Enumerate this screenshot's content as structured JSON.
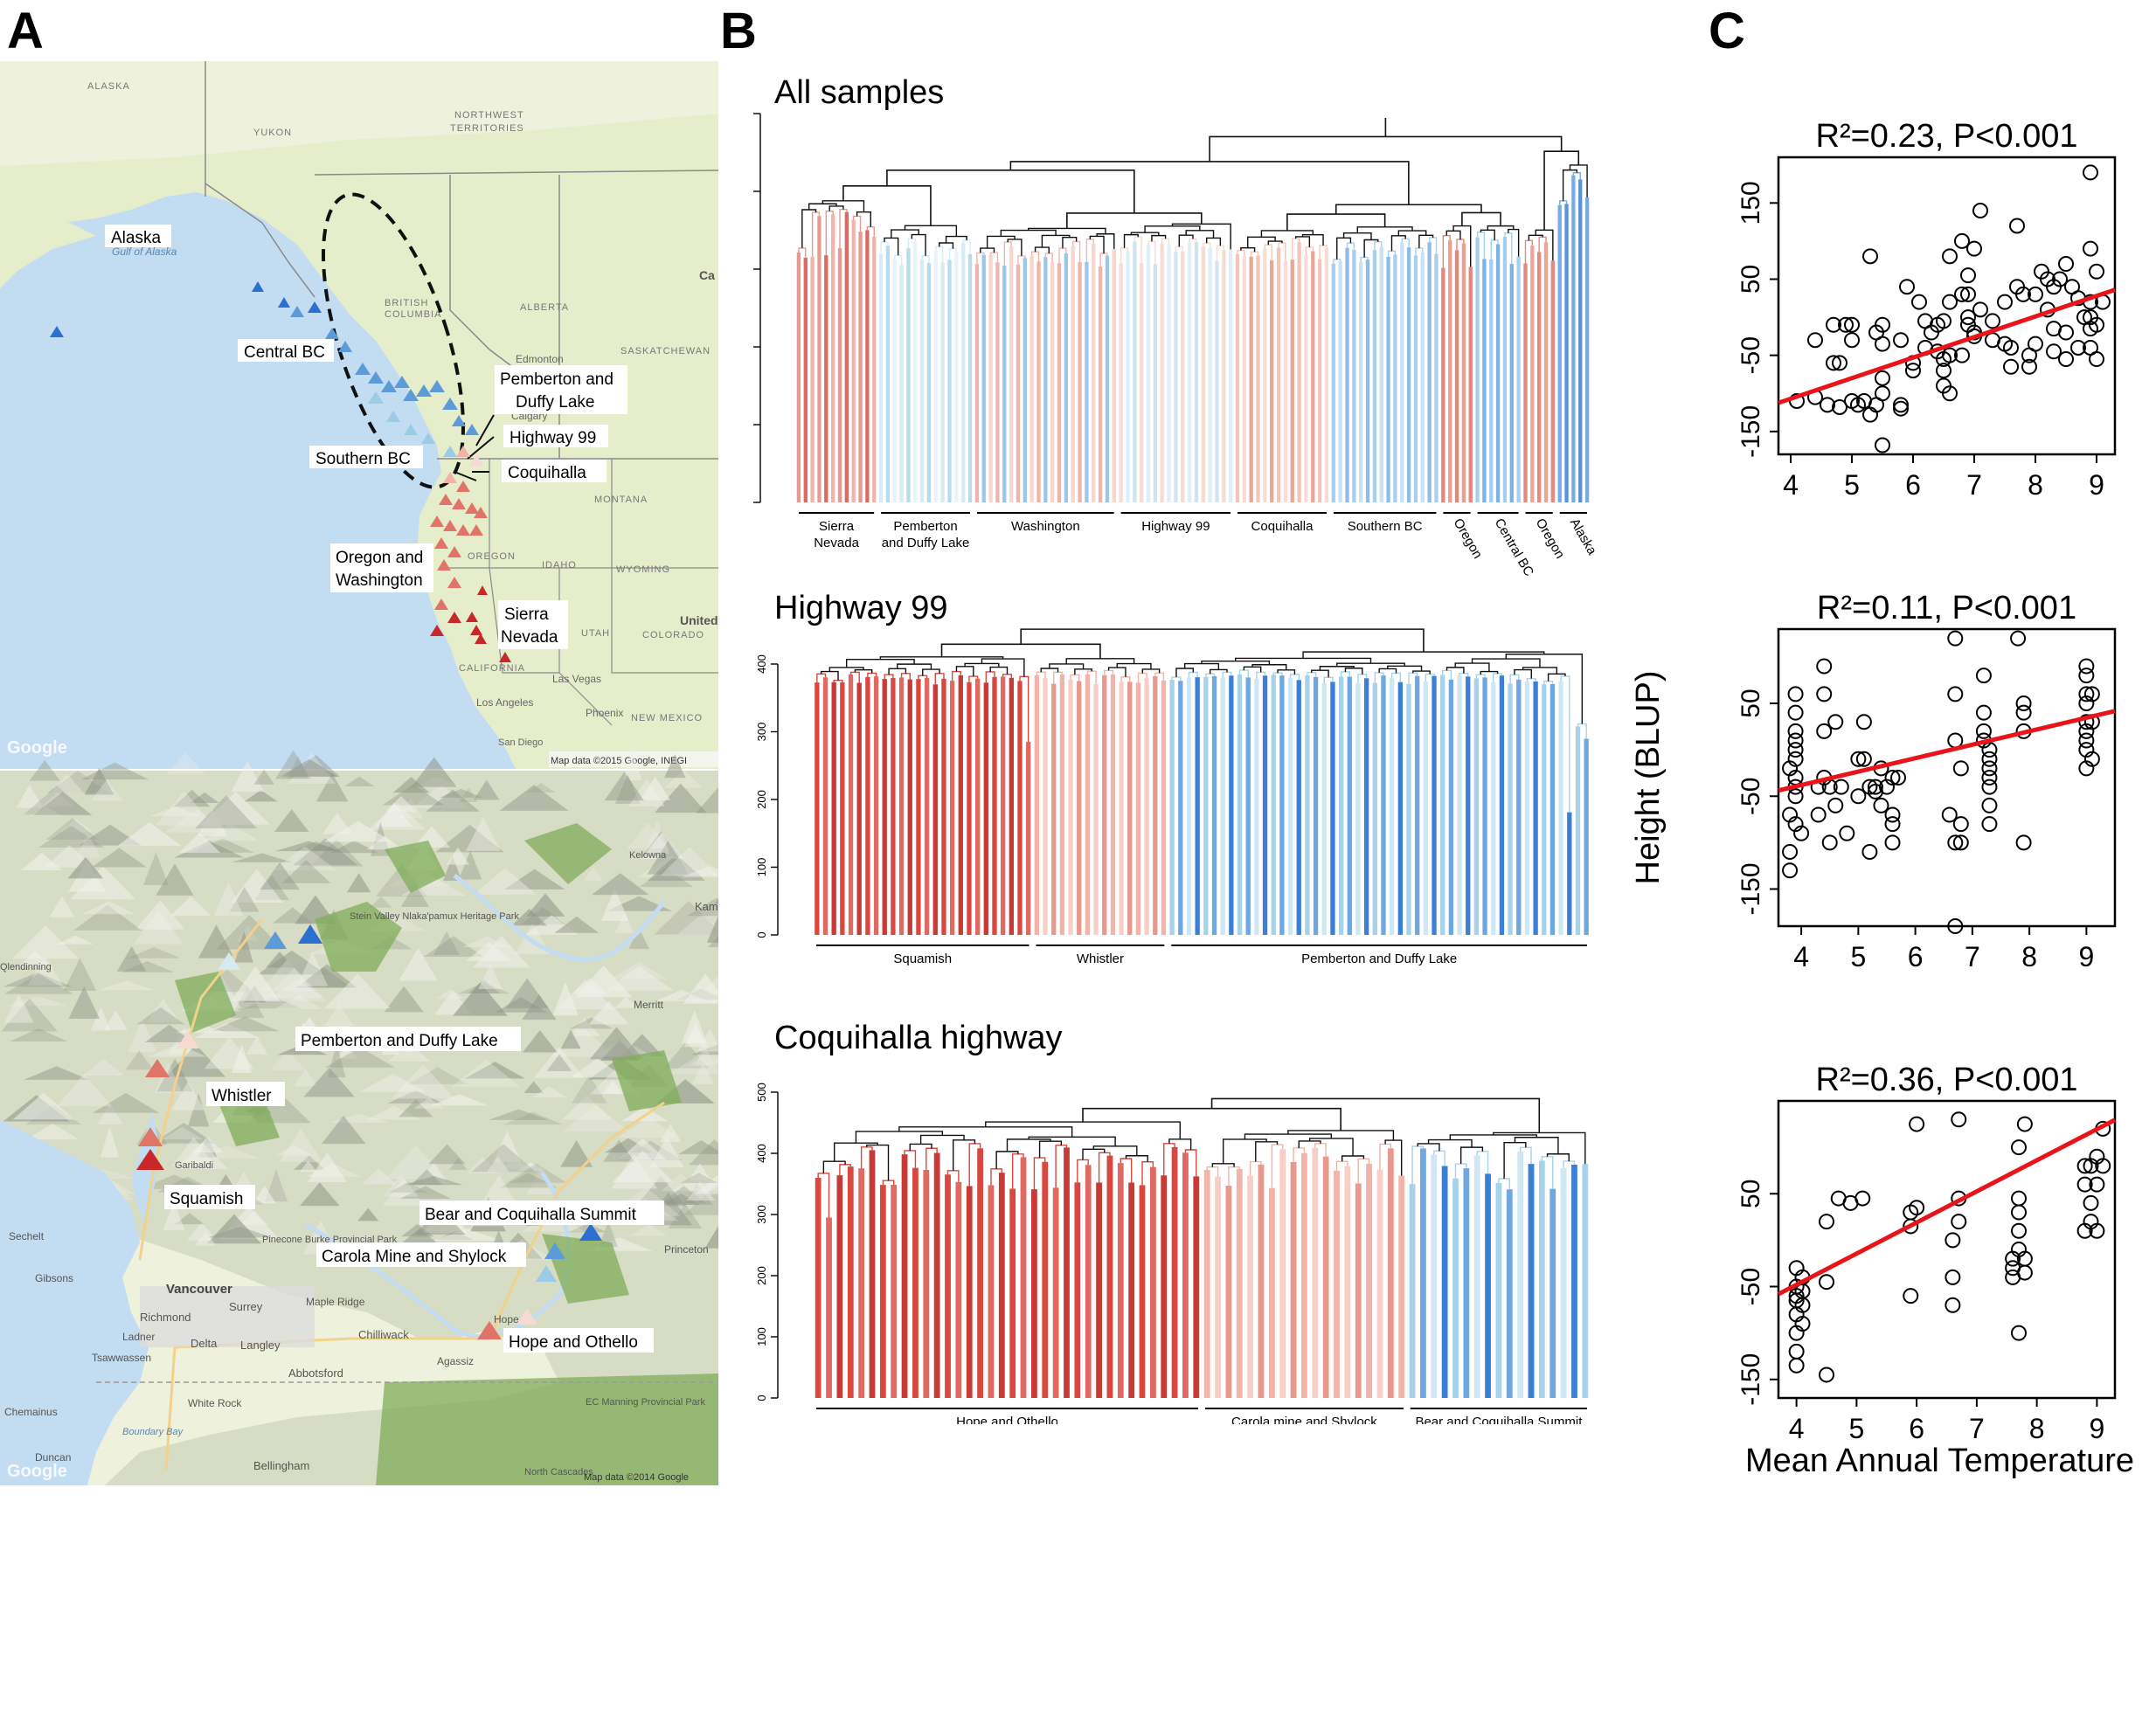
{
  "panels": {
    "a": "A",
    "b": "B",
    "c": "C"
  },
  "colors": {
    "ocean": "#c2dcf2",
    "land": "#e6edcb",
    "land_north": "#eef1dc",
    "terrain": "#d7dcc4",
    "terrain_dark": "#8f9587",
    "forest": "#7fae5a",
    "border": "#8a8a8a",
    "red_dark": "#c8282a",
    "red": "#e07468",
    "red_light": "#f2b2a6",
    "pale": "#f6d9d2",
    "ice": "#d6eaf2",
    "blue_light": "#9ccbe6",
    "blue": "#5d9bd8",
    "blue_dark": "#2b6fd0",
    "fit_line": "#e8141a"
  },
  "map_top": {
    "places": [
      "ALASKA",
      "YUKON",
      "NORTHWEST",
      "TERRITORIES",
      "BRITISH",
      "COLUMBIA",
      "ALBERTA",
      "SASKATCHEWAN",
      "Edmonton",
      "Calgary",
      "MONTANA",
      "IDAHO",
      "WYOMING",
      "OREGON",
      "UTAH",
      "COLORADO",
      "CALIFORNIA",
      "NEW MEXICO",
      "Las Vegas",
      "Los Angeles",
      "Phoenix",
      "San Diego",
      "United",
      "Gulf of Alaska",
      "Ca"
    ],
    "region_labels": [
      "Alaska",
      "Central BC",
      "Pemberton and",
      "Duffy Lake",
      "Highway 99",
      "Southern BC",
      "Coquihalla",
      "Oregon and",
      "Washington",
      "Sierra",
      "Nevada"
    ],
    "google": "Google",
    "credit": "Map data ©2015 Google, INEGI"
  },
  "map_bottom": {
    "site_labels": [
      "Pemberton and Duffy Lake",
      "Whistler",
      "Squamish",
      "Bear and Coquihalla Summit",
      "Carola Mine and Shylock",
      "Hope and Othello"
    ],
    "places": [
      "Vancouver",
      "Richmond",
      "Surrey",
      "Delta",
      "Langley",
      "Abbotsford",
      "Chilliwack",
      "Maple Ridge",
      "White Rock",
      "Bellingham",
      "Gibsons",
      "Sechelt",
      "Tsawwassen",
      "Ladner",
      "Merritt",
      "Princeton",
      "Hope",
      "Agassiz",
      "Duncan",
      "Chemainus",
      "Boundary Bay",
      "Garibaldi",
      "Stein Valley Nlaka'pamux Heritage Park",
      "Pinecone Burke Provincial Park",
      "EC Manning Provincial Park",
      "North Cascades",
      "Kam",
      "Qlendinning",
      "Kelowna"
    ],
    "google": "Google",
    "credit": "Map data ©2014 Google"
  },
  "dendrograms": [
    {
      "title": "All samples",
      "groups": [
        {
          "label": "Sierra Nevada",
          "lines": [
            "Sierra",
            "Nevada"
          ],
          "n": 12
        },
        {
          "label": "Pemberton and Duffy Lake",
          "lines": [
            "Pemberton",
            "and Duffy Lake"
          ],
          "n": 14
        },
        {
          "label": "Washington",
          "lines": [
            "Washington"
          ],
          "n": 21
        },
        {
          "label": "Highway 99",
          "lines": [
            "Highway 99"
          ],
          "n": 17
        },
        {
          "label": "Coquihalla",
          "lines": [
            "Coquihalla"
          ],
          "n": 14
        },
        {
          "label": "Southern BC",
          "lines": [
            "Southern BC"
          ],
          "n": 16
        },
        {
          "label": "Oregon",
          "lines": [
            "Oregon"
          ],
          "n": 5,
          "rotated": true
        },
        {
          "label": "Central BC",
          "lines": [
            "Central BC"
          ],
          "n": 7,
          "rotated": true
        },
        {
          "label": "Oregon",
          "lines": [
            "Oregon"
          ],
          "n": 5,
          "rotated": true
        },
        {
          "label": "Alaska",
          "lines": [
            "Alaska"
          ],
          "n": 5,
          "rotated": true
        }
      ]
    },
    {
      "title": "Highway 99",
      "ylim": [
        0,
        400
      ],
      "yticks": [
        0,
        100,
        200,
        300,
        400
      ],
      "groups": [
        {
          "label": "Squamish",
          "n": 26
        },
        {
          "label": "Whistler",
          "n": 16
        },
        {
          "label": "Pemberton and Duffy Lake",
          "n": 50
        }
      ]
    },
    {
      "title": "Coquihalla highway",
      "ylim": [
        0,
        500
      ],
      "yticks": [
        0,
        100,
        200,
        300,
        400,
        500
      ],
      "groups": [
        {
          "label": "Hope and Othello",
          "n": 36
        },
        {
          "label": "Carola mine and Shylock",
          "n": 19
        },
        {
          "label": "Bear and Coquihalla Summit",
          "n": 17
        }
      ]
    }
  ],
  "chart_data": [
    {
      "type": "scatter",
      "title": "R²=0.23, P<0.001",
      "xlim": [
        3.8,
        9.3
      ],
      "ylim": [
        -180,
        210
      ],
      "xticks": [
        4,
        5,
        6,
        7,
        8,
        9
      ],
      "yticks": [
        -150,
        -50,
        50,
        150
      ],
      "fit": {
        "intercept": -215,
        "slope": 27
      },
      "points": [
        [
          4.1,
          -110
        ],
        [
          4.4,
          -30
        ],
        [
          4.4,
          -105
        ],
        [
          4.6,
          -115
        ],
        [
          4.7,
          -60
        ],
        [
          4.7,
          -10
        ],
        [
          4.8,
          -118
        ],
        [
          4.8,
          -60
        ],
        [
          4.9,
          -10
        ],
        [
          5.0,
          -110
        ],
        [
          5.0,
          -30
        ],
        [
          5.0,
          -10
        ],
        [
          5.1,
          -115
        ],
        [
          5.2,
          -110
        ],
        [
          5.3,
          80
        ],
        [
          5.3,
          -128
        ],
        [
          5.4,
          -20
        ],
        [
          5.4,
          -115
        ],
        [
          5.5,
          -10
        ],
        [
          5.5,
          -80
        ],
        [
          5.5,
          -100
        ],
        [
          5.5,
          -35
        ],
        [
          5.5,
          -168
        ],
        [
          5.8,
          -120
        ],
        [
          5.8,
          -30
        ],
        [
          5.8,
          -115
        ],
        [
          5.9,
          40
        ],
        [
          6.0,
          -60
        ],
        [
          6.0,
          -70
        ],
        [
          6.1,
          20
        ],
        [
          6.2,
          -5
        ],
        [
          6.2,
          -40
        ],
        [
          6.3,
          -20
        ],
        [
          6.4,
          -10
        ],
        [
          6.4,
          -45
        ],
        [
          6.5,
          -5
        ],
        [
          6.5,
          -55
        ],
        [
          6.5,
          -70
        ],
        [
          6.5,
          -90
        ],
        [
          6.6,
          80
        ],
        [
          6.6,
          -50
        ],
        [
          6.6,
          -100
        ],
        [
          6.6,
          20
        ],
        [
          6.8,
          -50
        ],
        [
          6.8,
          100
        ],
        [
          6.8,
          30
        ],
        [
          6.9,
          0
        ],
        [
          6.9,
          -10
        ],
        [
          6.9,
          30
        ],
        [
          6.9,
          55
        ],
        [
          7.0,
          -20
        ],
        [
          7.0,
          90
        ],
        [
          7.0,
          -25
        ],
        [
          7.1,
          140
        ],
        [
          7.1,
          10
        ],
        [
          7.3,
          -30
        ],
        [
          7.3,
          -5
        ],
        [
          7.5,
          20
        ],
        [
          7.5,
          -35
        ],
        [
          7.6,
          -65
        ],
        [
          7.6,
          -40
        ],
        [
          7.7,
          40
        ],
        [
          7.7,
          120
        ],
        [
          7.8,
          30
        ],
        [
          7.9,
          -50
        ],
        [
          7.9,
          -65
        ],
        [
          8.0,
          -35
        ],
        [
          8.0,
          30
        ],
        [
          8.1,
          60
        ],
        [
          8.2,
          50
        ],
        [
          8.2,
          10
        ],
        [
          8.3,
          40
        ],
        [
          8.3,
          -15
        ],
        [
          8.3,
          -45
        ],
        [
          8.4,
          50
        ],
        [
          8.5,
          70
        ],
        [
          8.5,
          -20
        ],
        [
          8.5,
          -55
        ],
        [
          8.6,
          40
        ],
        [
          8.7,
          25
        ],
        [
          8.7,
          -40
        ],
        [
          8.8,
          0
        ],
        [
          8.9,
          20
        ],
        [
          8.9,
          90
        ],
        [
          8.9,
          -15
        ],
        [
          8.9,
          -40
        ],
        [
          8.9,
          190
        ],
        [
          8.9,
          0
        ],
        [
          9.0,
          60
        ],
        [
          9.0,
          -10
        ],
        [
          9.0,
          -55
        ],
        [
          9.1,
          20
        ]
      ]
    },
    {
      "type": "scatter",
      "title": "R²=0.11, P<0.001",
      "ylabel": "Height (BLUP)",
      "xlim": [
        3.6,
        9.5
      ],
      "ylim": [
        -190,
        130
      ],
      "xticks": [
        4,
        5,
        6,
        7,
        8,
        9
      ],
      "yticks": [
        -150,
        -50,
        50
      ],
      "fit": {
        "intercept": -96,
        "slope": 14.5
      },
      "points": [
        [
          3.8,
          -20
        ],
        [
          3.8,
          -70
        ],
        [
          3.8,
          -110
        ],
        [
          3.8,
          -130
        ],
        [
          3.9,
          60
        ],
        [
          3.9,
          40
        ],
        [
          3.9,
          20
        ],
        [
          3.9,
          10
        ],
        [
          3.9,
          0
        ],
        [
          3.9,
          -10
        ],
        [
          3.9,
          -30
        ],
        [
          3.9,
          -40
        ],
        [
          3.9,
          -50
        ],
        [
          3.9,
          -80
        ],
        [
          4.0,
          -90
        ],
        [
          4.3,
          -40
        ],
        [
          4.3,
          -70
        ],
        [
          4.4,
          -30
        ],
        [
          4.4,
          60
        ],
        [
          4.4,
          90
        ],
        [
          4.4,
          20
        ],
        [
          4.5,
          -40
        ],
        [
          4.5,
          -100
        ],
        [
          4.6,
          -60
        ],
        [
          4.6,
          30
        ],
        [
          4.7,
          -40
        ],
        [
          4.8,
          -90
        ],
        [
          5.0,
          -50
        ],
        [
          5.0,
          -10
        ],
        [
          5.1,
          30
        ],
        [
          5.1,
          -10
        ],
        [
          5.2,
          -110
        ],
        [
          5.2,
          -40
        ],
        [
          5.3,
          -45
        ],
        [
          5.3,
          -40
        ],
        [
          5.4,
          -20
        ],
        [
          5.4,
          -60
        ],
        [
          5.5,
          -40
        ],
        [
          5.6,
          -80
        ],
        [
          5.6,
          -100
        ],
        [
          5.6,
          -70
        ],
        [
          5.6,
          -30
        ],
        [
          5.7,
          -30
        ],
        [
          6.6,
          -70
        ],
        [
          6.7,
          -100
        ],
        [
          6.7,
          -190
        ],
        [
          6.7,
          120
        ],
        [
          6.7,
          60
        ],
        [
          6.7,
          10
        ],
        [
          6.8,
          -20
        ],
        [
          6.8,
          -80
        ],
        [
          6.8,
          -100
        ],
        [
          7.2,
          80
        ],
        [
          7.2,
          40
        ],
        [
          7.2,
          20
        ],
        [
          7.2,
          10
        ],
        [
          7.3,
          0
        ],
        [
          7.3,
          -10
        ],
        [
          7.3,
          -20
        ],
        [
          7.3,
          -30
        ],
        [
          7.3,
          -40
        ],
        [
          7.3,
          -60
        ],
        [
          7.3,
          -80
        ],
        [
          7.8,
          120
        ],
        [
          7.9,
          50
        ],
        [
          7.9,
          40
        ],
        [
          7.9,
          20
        ],
        [
          7.9,
          -100
        ],
        [
          9.0,
          90
        ],
        [
          9.0,
          80
        ],
        [
          9.0,
          60
        ],
        [
          9.0,
          50
        ],
        [
          9.0,
          30
        ],
        [
          9.0,
          20
        ],
        [
          9.0,
          10
        ],
        [
          9.0,
          0
        ],
        [
          9.0,
          -20
        ],
        [
          9.1,
          -10
        ],
        [
          9.1,
          30
        ],
        [
          9.1,
          60
        ]
      ]
    },
    {
      "type": "scatter",
      "title": "R²=0.36, P<0.001",
      "xlabel": "Mean Annual Temperature",
      "xlim": [
        3.7,
        9.3
      ],
      "ylim": [
        -170,
        150
      ],
      "xticks": [
        4,
        5,
        6,
        7,
        8,
        9
      ],
      "yticks": [
        -150,
        -50,
        50
      ],
      "fit": {
        "intercept": -182,
        "slope": 33.5
      },
      "points": [
        [
          4.0,
          -30
        ],
        [
          4.0,
          -50
        ],
        [
          4.0,
          -60
        ],
        [
          4.0,
          -65
        ],
        [
          4.0,
          -80
        ],
        [
          4.0,
          -100
        ],
        [
          4.0,
          -120
        ],
        [
          4.0,
          -135
        ],
        [
          4.1,
          -40
        ],
        [
          4.1,
          -55
        ],
        [
          4.1,
          -70
        ],
        [
          4.1,
          -90
        ],
        [
          4.5,
          20
        ],
        [
          4.5,
          -45
        ],
        [
          4.5,
          -145
        ],
        [
          4.7,
          45
        ],
        [
          4.9,
          40
        ],
        [
          5.1,
          45
        ],
        [
          5.9,
          -60
        ],
        [
          5.9,
          30
        ],
        [
          5.9,
          15
        ],
        [
          6.0,
          35
        ],
        [
          6.0,
          125
        ],
        [
          6.6,
          -40
        ],
        [
          6.6,
          -70
        ],
        [
          6.6,
          0
        ],
        [
          6.7,
          20
        ],
        [
          6.7,
          45
        ],
        [
          6.7,
          130
        ],
        [
          7.6,
          -20
        ],
        [
          7.6,
          -30
        ],
        [
          7.6,
          -40
        ],
        [
          7.7,
          10
        ],
        [
          7.7,
          30
        ],
        [
          7.7,
          45
        ],
        [
          7.7,
          -10
        ],
        [
          7.7,
          -100
        ],
        [
          7.7,
          100
        ],
        [
          7.8,
          -20
        ],
        [
          7.8,
          -35
        ],
        [
          7.8,
          125
        ],
        [
          8.8,
          60
        ],
        [
          8.8,
          80
        ],
        [
          8.8,
          10
        ],
        [
          8.9,
          40
        ],
        [
          8.9,
          20
        ],
        [
          8.9,
          80
        ],
        [
          9.0,
          10
        ],
        [
          9.0,
          90
        ],
        [
          9.0,
          60
        ],
        [
          9.1,
          80
        ],
        [
          9.1,
          120
        ]
      ]
    }
  ]
}
